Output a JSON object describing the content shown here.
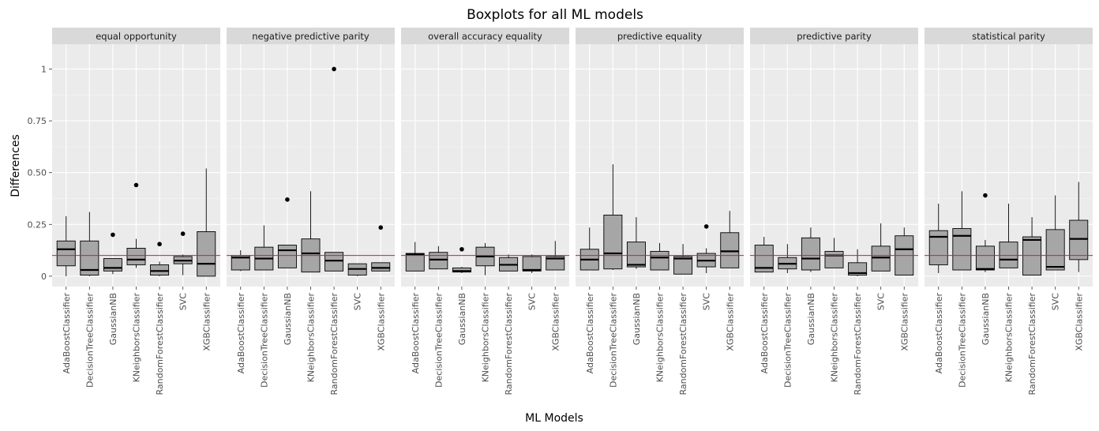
{
  "chart_data": {
    "type": "boxplot",
    "title": "Boxplots for all ML models",
    "xlabel": "ML Models",
    "ylabel": "Differences",
    "ylim": [
      -0.05,
      1.12
    ],
    "yticks": [
      0,
      0.25,
      0.5,
      0.75,
      1
    ],
    "ytick_labels": [
      "0",
      "0.25",
      "0.50",
      "0.75",
      "1"
    ],
    "reference_line": {
      "y": 0.1,
      "color": "#e41a1c"
    },
    "categories": [
      "AdaBoostClassifier",
      "DecisionTreeClassifier",
      "GaussianNB",
      "KNeighborsClassifier",
      "RandomForestClassifier",
      "SVC",
      "XGBClassifier"
    ],
    "facets": [
      {
        "name": "equal opportunity",
        "boxes": [
          {
            "min": 0.0,
            "q1": 0.05,
            "median": 0.13,
            "q3": 0.17,
            "max": 0.29,
            "outliers": []
          },
          {
            "min": 0.0,
            "q1": 0.005,
            "median": 0.03,
            "q3": 0.17,
            "max": 0.31,
            "outliers": []
          },
          {
            "min": 0.01,
            "q1": 0.025,
            "median": 0.04,
            "q3": 0.085,
            "max": 0.085,
            "outliers": [
              0.2
            ]
          },
          {
            "min": 0.04,
            "q1": 0.055,
            "median": 0.08,
            "q3": 0.135,
            "max": 0.18,
            "outliers": [
              0.44
            ]
          },
          {
            "min": 0.0,
            "q1": 0.005,
            "median": 0.025,
            "q3": 0.055,
            "max": 0.07,
            "outliers": [
              0.155
            ]
          },
          {
            "min": 0.005,
            "q1": 0.06,
            "median": 0.075,
            "q3": 0.095,
            "max": 0.105,
            "outliers": [
              0.205
            ]
          },
          {
            "min": 0.0,
            "q1": 0.0,
            "median": 0.06,
            "q3": 0.215,
            "max": 0.52,
            "outliers": []
          }
        ]
      },
      {
        "name": "negative predictive parity",
        "boxes": [
          {
            "min": 0.025,
            "q1": 0.03,
            "median": 0.09,
            "q3": 0.1,
            "max": 0.125,
            "outliers": []
          },
          {
            "min": 0.03,
            "q1": 0.03,
            "median": 0.085,
            "q3": 0.14,
            "max": 0.245,
            "outliers": []
          },
          {
            "min": 0.04,
            "q1": 0.04,
            "median": 0.125,
            "q3": 0.15,
            "max": 0.15,
            "outliers": [
              0.37
            ]
          },
          {
            "min": 0.02,
            "q1": 0.02,
            "median": 0.11,
            "q3": 0.18,
            "max": 0.41,
            "outliers": []
          },
          {
            "min": 0.025,
            "q1": 0.025,
            "median": 0.075,
            "q3": 0.115,
            "max": 0.115,
            "outliers": [
              1.0
            ]
          },
          {
            "min": 0.0,
            "q1": 0.005,
            "median": 0.035,
            "q3": 0.06,
            "max": 0.06,
            "outliers": []
          },
          {
            "min": 0.025,
            "q1": 0.025,
            "median": 0.04,
            "q3": 0.065,
            "max": 0.065,
            "outliers": [
              0.235
            ]
          }
        ]
      },
      {
        "name": "overall accuracy equality",
        "boxes": [
          {
            "min": 0.025,
            "q1": 0.025,
            "median": 0.105,
            "q3": 0.11,
            "max": 0.165,
            "outliers": []
          },
          {
            "min": 0.035,
            "q1": 0.035,
            "median": 0.08,
            "q3": 0.115,
            "max": 0.145,
            "outliers": []
          },
          {
            "min": 0.015,
            "q1": 0.02,
            "median": 0.025,
            "q3": 0.04,
            "max": 0.045,
            "outliers": [
              0.13
            ]
          },
          {
            "min": 0.005,
            "q1": 0.05,
            "median": 0.095,
            "q3": 0.14,
            "max": 0.16,
            "outliers": []
          },
          {
            "min": 0.025,
            "q1": 0.025,
            "median": 0.055,
            "q3": 0.09,
            "max": 0.105,
            "outliers": []
          },
          {
            "min": 0.015,
            "q1": 0.025,
            "median": 0.03,
            "q3": 0.095,
            "max": 0.105,
            "outliers": []
          },
          {
            "min": 0.03,
            "q1": 0.03,
            "median": 0.085,
            "q3": 0.095,
            "max": 0.17,
            "outliers": []
          }
        ]
      },
      {
        "name": "predictive equality",
        "boxes": [
          {
            "min": 0.03,
            "q1": 0.03,
            "median": 0.08,
            "q3": 0.13,
            "max": 0.235,
            "outliers": []
          },
          {
            "min": 0.03,
            "q1": 0.035,
            "median": 0.11,
            "q3": 0.295,
            "max": 0.54,
            "outliers": []
          },
          {
            "min": 0.035,
            "q1": 0.045,
            "median": 0.055,
            "q3": 0.165,
            "max": 0.285,
            "outliers": []
          },
          {
            "min": 0.03,
            "q1": 0.03,
            "median": 0.09,
            "q3": 0.12,
            "max": 0.16,
            "outliers": []
          },
          {
            "min": 0.01,
            "q1": 0.01,
            "median": 0.085,
            "q3": 0.095,
            "max": 0.155,
            "outliers": []
          },
          {
            "min": 0.015,
            "q1": 0.045,
            "median": 0.075,
            "q3": 0.11,
            "max": 0.135,
            "outliers": [
              0.24
            ]
          },
          {
            "min": 0.04,
            "q1": 0.04,
            "median": 0.12,
            "q3": 0.21,
            "max": 0.315,
            "outliers": []
          }
        ]
      },
      {
        "name": "predictive parity",
        "boxes": [
          {
            "min": 0.02,
            "q1": 0.02,
            "median": 0.04,
            "q3": 0.15,
            "max": 0.19,
            "outliers": []
          },
          {
            "min": 0.015,
            "q1": 0.035,
            "median": 0.06,
            "q3": 0.09,
            "max": 0.155,
            "outliers": []
          },
          {
            "min": 0.02,
            "q1": 0.03,
            "median": 0.085,
            "q3": 0.185,
            "max": 0.235,
            "outliers": []
          },
          {
            "min": 0.04,
            "q1": 0.04,
            "median": 0.1,
            "q3": 0.12,
            "max": 0.185,
            "outliers": []
          },
          {
            "min": 0.0,
            "q1": 0.005,
            "median": 0.015,
            "q3": 0.065,
            "max": 0.13,
            "outliers": []
          },
          {
            "min": 0.025,
            "q1": 0.025,
            "median": 0.09,
            "q3": 0.145,
            "max": 0.255,
            "outliers": []
          },
          {
            "min": 0.005,
            "q1": 0.005,
            "median": 0.13,
            "q3": 0.195,
            "max": 0.235,
            "outliers": []
          }
        ]
      },
      {
        "name": "statistical parity",
        "boxes": [
          {
            "min": 0.015,
            "q1": 0.055,
            "median": 0.19,
            "q3": 0.22,
            "max": 0.35,
            "outliers": []
          },
          {
            "min": 0.03,
            "q1": 0.03,
            "median": 0.195,
            "q3": 0.23,
            "max": 0.41,
            "outliers": []
          },
          {
            "min": 0.02,
            "q1": 0.03,
            "median": 0.035,
            "q3": 0.145,
            "max": 0.175,
            "outliers": [
              0.39
            ]
          },
          {
            "min": 0.04,
            "q1": 0.04,
            "median": 0.08,
            "q3": 0.165,
            "max": 0.35,
            "outliers": []
          },
          {
            "min": 0.005,
            "q1": 0.005,
            "median": 0.175,
            "q3": 0.19,
            "max": 0.285,
            "outliers": []
          },
          {
            "min": 0.03,
            "q1": 0.03,
            "median": 0.045,
            "q3": 0.225,
            "max": 0.39,
            "outliers": []
          },
          {
            "min": 0.02,
            "q1": 0.08,
            "median": 0.18,
            "q3": 0.27,
            "max": 0.455,
            "outliers": []
          }
        ]
      }
    ]
  }
}
